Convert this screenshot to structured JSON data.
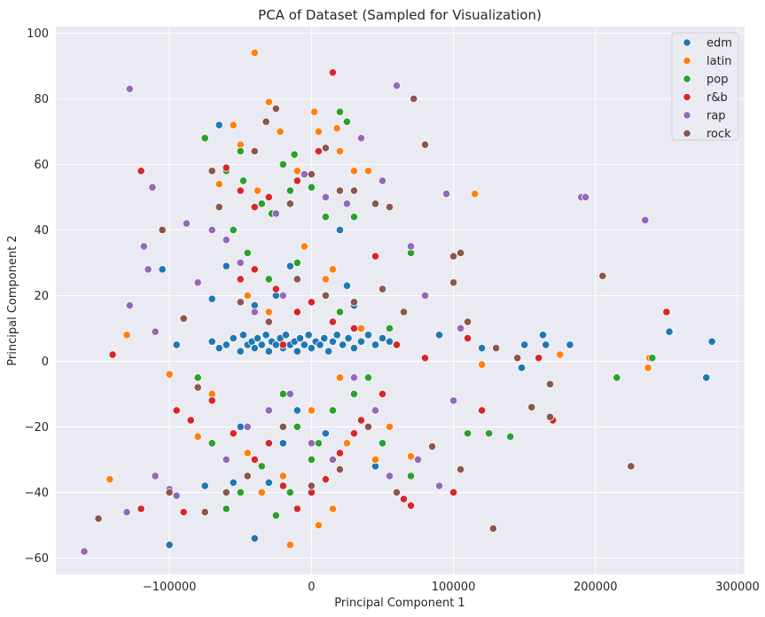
{
  "chart_data": {
    "type": "scatter",
    "title": "PCA of Dataset (Sampled for Visualization)",
    "xlabel": "Principal Component 1",
    "ylabel": "Principal Component 2",
    "xlim": [
      -180000,
      305000
    ],
    "ylim": [
      -65,
      102
    ],
    "xticks": [
      -100000,
      0,
      100000,
      200000,
      300000
    ],
    "xtick_labels": [
      "−100000",
      "0",
      "100000",
      "200000",
      "300000"
    ],
    "yticks": [
      -60,
      -40,
      -20,
      0,
      20,
      40,
      60,
      80,
      100
    ],
    "ytick_labels": [
      "−60",
      "−40",
      "−20",
      "0",
      "20",
      "40",
      "60",
      "80",
      "100"
    ],
    "grid": true,
    "legend_position": "top-right",
    "series": [
      {
        "name": "edm",
        "color": "#1f77b4",
        "points": [
          [
            -70000,
            6
          ],
          [
            -65000,
            4
          ],
          [
            -60000,
            5
          ],
          [
            -55000,
            7
          ],
          [
            -50000,
            3
          ],
          [
            -48000,
            8
          ],
          [
            -45000,
            5
          ],
          [
            -42000,
            6
          ],
          [
            -40000,
            4
          ],
          [
            -38000,
            7
          ],
          [
            -35000,
            5
          ],
          [
            -32000,
            8
          ],
          [
            -30000,
            3
          ],
          [
            -28000,
            6
          ],
          [
            -25000,
            5
          ],
          [
            -22000,
            7
          ],
          [
            -20000,
            4
          ],
          [
            -18000,
            8
          ],
          [
            -15000,
            5
          ],
          [
            -12000,
            6
          ],
          [
            -10000,
            3
          ],
          [
            -8000,
            7
          ],
          [
            -5000,
            5
          ],
          [
            -2000,
            8
          ],
          [
            0,
            4
          ],
          [
            3000,
            6
          ],
          [
            6000,
            5
          ],
          [
            9000,
            7
          ],
          [
            12000,
            3
          ],
          [
            15000,
            6
          ],
          [
            18000,
            8
          ],
          [
            22000,
            5
          ],
          [
            26000,
            7
          ],
          [
            30000,
            4
          ],
          [
            35000,
            6
          ],
          [
            40000,
            8
          ],
          [
            45000,
            5
          ],
          [
            50000,
            7
          ],
          [
            55000,
            6
          ],
          [
            -40000,
            17
          ],
          [
            -25000,
            20
          ],
          [
            -15000,
            29
          ],
          [
            -60000,
            29
          ],
          [
            -70000,
            19
          ],
          [
            -65000,
            72
          ],
          [
            -105000,
            28
          ],
          [
            -95000,
            5
          ],
          [
            -100000,
            -56
          ],
          [
            -40000,
            -54
          ],
          [
            -30000,
            -37
          ],
          [
            -20000,
            -25
          ],
          [
            -50000,
            -20
          ],
          [
            -10000,
            -15
          ],
          [
            10000,
            -22
          ],
          [
            25000,
            23
          ],
          [
            30000,
            17
          ],
          [
            20000,
            40
          ],
          [
            90000,
            8
          ],
          [
            120000,
            4
          ],
          [
            150000,
            5
          ],
          [
            148000,
            -2
          ],
          [
            160000,
            1
          ],
          [
            163000,
            8
          ],
          [
            165000,
            5
          ],
          [
            182000,
            5
          ],
          [
            252000,
            9
          ],
          [
            278000,
            -5
          ],
          [
            282000,
            6
          ],
          [
            -75000,
            -38
          ],
          [
            -55000,
            -37
          ],
          [
            45000,
            -32
          ]
        ]
      },
      {
        "name": "latin",
        "color": "#ff7f0e",
        "points": [
          [
            -40000,
            94
          ],
          [
            -30000,
            79
          ],
          [
            -22000,
            70
          ],
          [
            2000,
            76
          ],
          [
            5000,
            70
          ],
          [
            18000,
            71
          ],
          [
            20000,
            64
          ],
          [
            40000,
            58
          ],
          [
            -50000,
            66
          ],
          [
            -65000,
            54
          ],
          [
            -55000,
            72
          ],
          [
            -10000,
            58
          ],
          [
            -38000,
            52
          ],
          [
            30000,
            58
          ],
          [
            115000,
            51
          ],
          [
            -130000,
            8
          ],
          [
            -100000,
            -4
          ],
          [
            -142000,
            -36
          ],
          [
            -80000,
            -23
          ],
          [
            -60000,
            -30
          ],
          [
            -45000,
            -28
          ],
          [
            -35000,
            -40
          ],
          [
            -20000,
            -35
          ],
          [
            -15000,
            -56
          ],
          [
            5000,
            -50
          ],
          [
            15000,
            -45
          ],
          [
            45000,
            -30
          ],
          [
            70000,
            -29
          ],
          [
            120000,
            -1
          ],
          [
            175000,
            2
          ],
          [
            238000,
            1
          ],
          [
            237000,
            -2
          ],
          [
            -20000,
            -10
          ],
          [
            0,
            -15
          ],
          [
            20000,
            -5
          ],
          [
            35000,
            10
          ],
          [
            -30000,
            15
          ],
          [
            10000,
            25
          ],
          [
            -5000,
            35
          ],
          [
            15000,
            28
          ],
          [
            -45000,
            20
          ],
          [
            55000,
            -20
          ],
          [
            -70000,
            -10
          ],
          [
            25000,
            -25
          ]
        ]
      },
      {
        "name": "pop",
        "color": "#2ca02c",
        "points": [
          [
            -75000,
            68
          ],
          [
            -60000,
            58
          ],
          [
            -50000,
            64
          ],
          [
            -48000,
            55
          ],
          [
            -35000,
            48
          ],
          [
            -28000,
            45
          ],
          [
            -20000,
            60
          ],
          [
            -15000,
            52
          ],
          [
            -12000,
            63
          ],
          [
            0,
            53
          ],
          [
            10000,
            44
          ],
          [
            20000,
            76
          ],
          [
            25000,
            73
          ],
          [
            30000,
            44
          ],
          [
            -45000,
            33
          ],
          [
            -40000,
            28
          ],
          [
            -30000,
            25
          ],
          [
            -10000,
            30
          ],
          [
            20000,
            15
          ],
          [
            40000,
            -5
          ],
          [
            55000,
            10
          ],
          [
            70000,
            33
          ],
          [
            -20000,
            -10
          ],
          [
            -10000,
            -20
          ],
          [
            5000,
            -25
          ],
          [
            -60000,
            -45
          ],
          [
            -50000,
            -40
          ],
          [
            -35000,
            -32
          ],
          [
            -25000,
            -47
          ],
          [
            -15000,
            -40
          ],
          [
            0,
            -30
          ],
          [
            15000,
            -15
          ],
          [
            30000,
            -10
          ],
          [
            50000,
            -25
          ],
          [
            110000,
            -22
          ],
          [
            125000,
            -22
          ],
          [
            140000,
            -23
          ],
          [
            215000,
            -5
          ],
          [
            240000,
            1
          ],
          [
            -70000,
            -25
          ],
          [
            -80000,
            -5
          ],
          [
            60000,
            -40
          ],
          [
            70000,
            -35
          ],
          [
            -55000,
            40
          ]
        ]
      },
      {
        "name": "r&b",
        "color": "#d62728",
        "points": [
          [
            -140000,
            2
          ],
          [
            -120000,
            58
          ],
          [
            -60000,
            59
          ],
          [
            -50000,
            52
          ],
          [
            -40000,
            47
          ],
          [
            -30000,
            50
          ],
          [
            -10000,
            55
          ],
          [
            5000,
            64
          ],
          [
            15000,
            88
          ],
          [
            -50000,
            25
          ],
          [
            -40000,
            28
          ],
          [
            -25000,
            22
          ],
          [
            -10000,
            15
          ],
          [
            0,
            18
          ],
          [
            15000,
            12
          ],
          [
            30000,
            10
          ],
          [
            45000,
            32
          ],
          [
            60000,
            5
          ],
          [
            80000,
            1
          ],
          [
            -95000,
            -15
          ],
          [
            -85000,
            -18
          ],
          [
            -70000,
            -12
          ],
          [
            -55000,
            -22
          ],
          [
            -40000,
            -30
          ],
          [
            -30000,
            -25
          ],
          [
            -20000,
            -38
          ],
          [
            -10000,
            -45
          ],
          [
            0,
            -40
          ],
          [
            10000,
            -36
          ],
          [
            20000,
            -28
          ],
          [
            35000,
            -18
          ],
          [
            50000,
            -10
          ],
          [
            65000,
            -42
          ],
          [
            70000,
            -44
          ],
          [
            110000,
            7
          ],
          [
            120000,
            -15
          ],
          [
            160000,
            1
          ],
          [
            170000,
            -18
          ],
          [
            250000,
            15
          ],
          [
            -120000,
            -45
          ],
          [
            -90000,
            -46
          ],
          [
            30000,
            -22
          ],
          [
            -20000,
            5
          ],
          [
            100000,
            -40
          ]
        ]
      },
      {
        "name": "rap",
        "color": "#9467bd",
        "points": [
          [
            -160000,
            -58
          ],
          [
            -128000,
            83
          ],
          [
            -128000,
            17
          ],
          [
            -118000,
            35
          ],
          [
            -112000,
            53
          ],
          [
            -110000,
            9
          ],
          [
            -110000,
            -35
          ],
          [
            -100000,
            -39
          ],
          [
            -95000,
            -41
          ],
          [
            -88000,
            42
          ],
          [
            -80000,
            24
          ],
          [
            -70000,
            40
          ],
          [
            -60000,
            37
          ],
          [
            -50000,
            30
          ],
          [
            -40000,
            15
          ],
          [
            -25000,
            45
          ],
          [
            -20000,
            20
          ],
          [
            -5000,
            57
          ],
          [
            10000,
            50
          ],
          [
            25000,
            48
          ],
          [
            35000,
            68
          ],
          [
            50000,
            55
          ],
          [
            60000,
            84
          ],
          [
            70000,
            35
          ],
          [
            80000,
            20
          ],
          [
            95000,
            51
          ],
          [
            105000,
            10
          ],
          [
            -60000,
            -30
          ],
          [
            -45000,
            -20
          ],
          [
            -30000,
            -15
          ],
          [
            -15000,
            -10
          ],
          [
            0,
            -25
          ],
          [
            15000,
            -30
          ],
          [
            30000,
            -5
          ],
          [
            45000,
            -15
          ],
          [
            55000,
            -35
          ],
          [
            75000,
            -30
          ],
          [
            90000,
            -38
          ],
          [
            100000,
            -12
          ],
          [
            190000,
            50
          ],
          [
            193000,
            50
          ],
          [
            235000,
            43
          ],
          [
            -130000,
            -46
          ],
          [
            -115000,
            28
          ]
        ]
      },
      {
        "name": "rock",
        "color": "#8c564b",
        "points": [
          [
            -150000,
            -48
          ],
          [
            -105000,
            40
          ],
          [
            -90000,
            13
          ],
          [
            -80000,
            -8
          ],
          [
            -70000,
            58
          ],
          [
            -65000,
            47
          ],
          [
            -40000,
            64
          ],
          [
            -32000,
            73
          ],
          [
            -25000,
            77
          ],
          [
            -15000,
            48
          ],
          [
            0,
            57
          ],
          [
            10000,
            65
          ],
          [
            20000,
            52
          ],
          [
            30000,
            52
          ],
          [
            45000,
            48
          ],
          [
            55000,
            47
          ],
          [
            72000,
            80
          ],
          [
            80000,
            66
          ],
          [
            -50000,
            18
          ],
          [
            -30000,
            12
          ],
          [
            -10000,
            25
          ],
          [
            10000,
            20
          ],
          [
            30000,
            18
          ],
          [
            50000,
            22
          ],
          [
            65000,
            15
          ],
          [
            100000,
            24
          ],
          [
            100000,
            32
          ],
          [
            105000,
            33
          ],
          [
            110000,
            12
          ],
          [
            130000,
            4
          ],
          [
            145000,
            1
          ],
          [
            155000,
            -14
          ],
          [
            168000,
            -7
          ],
          [
            168000,
            -17
          ],
          [
            205000,
            26
          ],
          [
            225000,
            -32
          ],
          [
            128000,
            -51
          ],
          [
            105000,
            -33
          ],
          [
            85000,
            -26
          ],
          [
            -60000,
            -40
          ],
          [
            -45000,
            -35
          ],
          [
            -20000,
            -20
          ],
          [
            0,
            -38
          ],
          [
            20000,
            -33
          ],
          [
            40000,
            -20
          ],
          [
            60000,
            -40
          ],
          [
            -75000,
            -46
          ],
          [
            -100000,
            -40
          ]
        ]
      }
    ]
  }
}
